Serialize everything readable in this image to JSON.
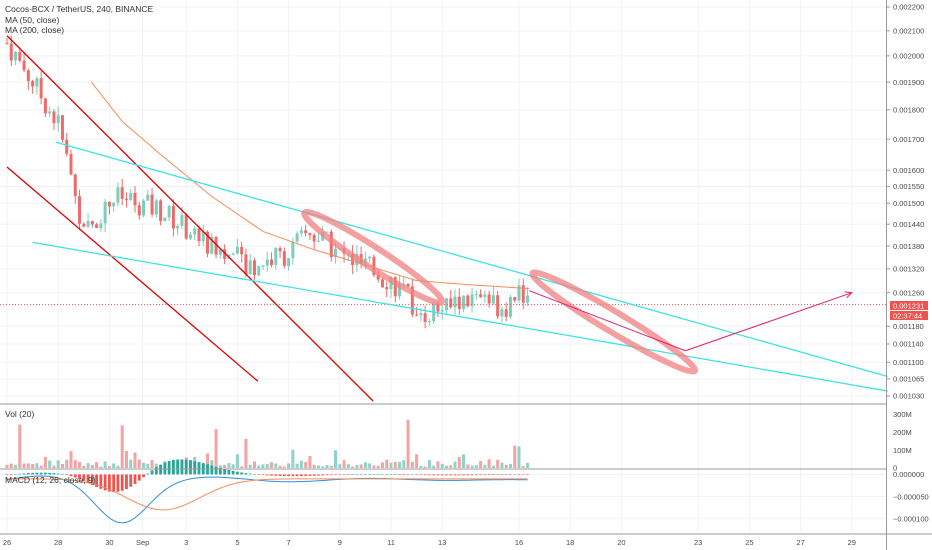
{
  "header": {
    "symbol": "Cocos-BCX / TetherUS, 240, BINANCE",
    "ma1": "MA (50, close)",
    "ma2": "MA (200, close)"
  },
  "panels": {
    "volume": "Vol (20)",
    "macd": "MACD (12, 26, close, 9)"
  },
  "colors": {
    "up": "#7fcdbb",
    "down": "#ef6b6b",
    "up_vol": "#8dd3c7",
    "down_vol": "#f4a3a3",
    "ma50": "#f28c5a",
    "trend_red": "#e00000",
    "trend_cyan": "#3fe3e3",
    "arrow": "#e0206a",
    "ellipse": "#f08080",
    "price_tag": "#ef5350",
    "macd_line": "#2f8fd8",
    "signal_line": "#f28c5a"
  },
  "chart_data": {
    "type": "candlestick",
    "price_axis": {
      "min": 0.00103,
      "max": 0.0022,
      "scale": "log",
      "ticks": [
        "0.002200",
        "0.002100",
        "0.002000",
        "0.001900",
        "0.001800",
        "0.001700",
        "0.001600",
        "0.001550",
        "0.001500",
        "0.001440",
        "0.001380",
        "0.001320",
        "0.001260",
        "0.001180",
        "0.001140",
        "0.001100",
        "0.001065",
        "0.001030"
      ]
    },
    "current_price": {
      "value": "0.001231",
      "countdown": "02:37:44"
    },
    "time_axis": {
      "labels": [
        "26",
        "28",
        "30",
        "Sep",
        "3",
        "5",
        "7",
        "9",
        "11",
        "13",
        "16",
        "18",
        "20",
        "23",
        "25",
        "27",
        "29"
      ],
      "label_positions_days": [
        0,
        2,
        4,
        5.3,
        7,
        9,
        11,
        13,
        15,
        17,
        20,
        22,
        24,
        27,
        29,
        31,
        33
      ]
    },
    "volume_axis": {
      "ticks": [
        "300M",
        "200M",
        "100M",
        "0"
      ],
      "max": 330
    },
    "macd_axis": {
      "ticks": [
        "0.000000",
        "−0.000050",
        "−0.000100"
      ],
      "min": -0.00013,
      "max": 1e-05
    },
    "candles_summary": {
      "start": "Aug 26",
      "end": "Sep 16",
      "interval": "240",
      "key_prices": [
        {
          "day": 0,
          "price": 0.00205
        },
        {
          "day": 2,
          "price": 0.00175
        },
        {
          "day": 3,
          "price": 0.00141
        },
        {
          "day": 4.2,
          "price": 0.00152
        },
        {
          "day": 6,
          "price": 0.00148
        },
        {
          "day": 8,
          "price": 0.00138
        },
        {
          "day": 9.5,
          "price": 0.00133
        },
        {
          "day": 11,
          "price": 0.00136
        },
        {
          "day": 11.8,
          "price": 0.00142
        },
        {
          "day": 13,
          "price": 0.00136
        },
        {
          "day": 15,
          "price": 0.00129
        },
        {
          "day": 16.2,
          "price": 0.00121
        },
        {
          "day": 18,
          "price": 0.00124
        },
        {
          "day": 19.5,
          "price": 0.00123
        },
        {
          "day": 20,
          "price": 0.00128
        },
        {
          "day": 20.4,
          "price": 0.001231
        }
      ]
    },
    "overlays": {
      "ma50_points": [
        {
          "day": 3.3,
          "price": 0.0019
        },
        {
          "day": 4.5,
          "price": 0.00176
        },
        {
          "day": 6,
          "price": 0.00165
        },
        {
          "day": 8,
          "price": 0.00152
        },
        {
          "day": 10,
          "price": 0.00142
        },
        {
          "day": 12,
          "price": 0.00137
        },
        {
          "day": 14,
          "price": 0.00133
        },
        {
          "day": 16,
          "price": 0.00129
        },
        {
          "day": 18,
          "price": 0.00128
        },
        {
          "day": 20.4,
          "price": 0.00127
        }
      ],
      "trendlines": [
        {
          "color": "trend_red",
          "from": {
            "day": 0,
            "price": 0.00208
          },
          "to": {
            "day": 14.3,
            "price": 0.00102
          }
        },
        {
          "color": "trend_red",
          "from": {
            "day": 0,
            "price": 0.00161
          },
          "to": {
            "day": 9.8,
            "price": 0.00106
          }
        },
        {
          "color": "trend_cyan",
          "from": {
            "day": 1.9,
            "price": 0.00169
          },
          "to": {
            "day": 34.4,
            "price": 0.00107
          }
        },
        {
          "color": "trend_cyan",
          "from": {
            "day": 1.0,
            "price": 0.00139
          },
          "to": {
            "day": 34.4,
            "price": 0.00104
          }
        }
      ],
      "arrows": [
        {
          "from": {
            "day": 20.4,
            "price": 0.001265
          },
          "to": {
            "day": 26.5,
            "price": 0.001125
          }
        },
        {
          "from": {
            "day": 26.5,
            "price": 0.001125
          },
          "to": {
            "day": 33.0,
            "price": 0.00126
          }
        }
      ],
      "ellipses": [
        {
          "cx_day": 14.3,
          "cy_price": 0.00135,
          "rx_days": 3.2,
          "ry_price_span": 3e-05,
          "rotate": 33
        },
        {
          "cx_day": 23.7,
          "cy_price": 0.00119,
          "rx_days": 3.7,
          "ry_price_span": 3e-05,
          "rotate": 31
        }
      ]
    }
  }
}
